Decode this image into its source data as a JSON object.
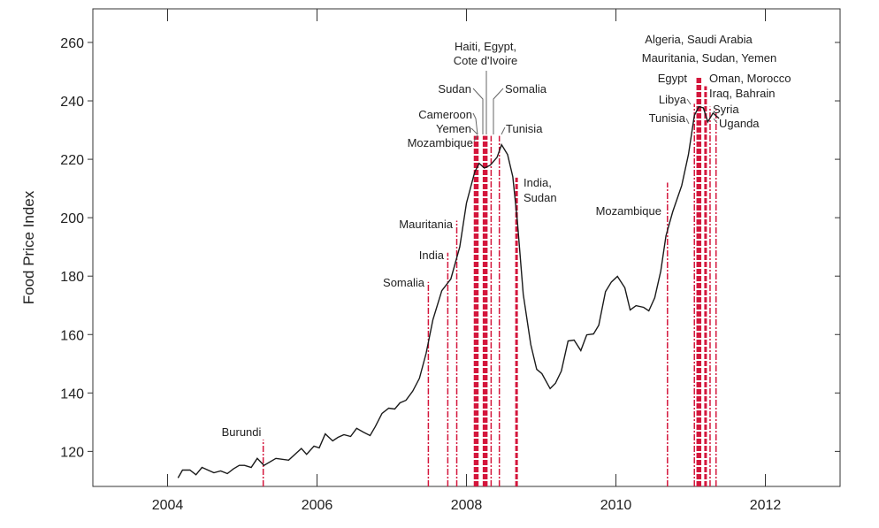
{
  "chart_data": {
    "type": "line",
    "title": "",
    "xlabel": "",
    "ylabel": "Food Price Index",
    "xlim": [
      2003,
      2013
    ],
    "ylim": [
      108,
      271.5
    ],
    "xticks": [
      2004,
      2006,
      2008,
      2010,
      2012
    ],
    "yticks": [
      120,
      140,
      160,
      180,
      200,
      220,
      240,
      260
    ],
    "grid": false,
    "colors": {
      "line": "#1a1a1a",
      "events": "#d4163c",
      "axis": "#333333"
    },
    "series": [
      {
        "x": [
          2004.14,
          2004.2,
          2004.3,
          2004.38,
          2004.46,
          2004.62,
          2004.71,
          2004.8,
          2004.88,
          2004.96,
          2005.03,
          2005.12,
          2005.2,
          2005.29,
          2005.45,
          2005.62,
          2005.79,
          2005.86,
          2005.96,
          2006.03,
          2006.11,
          2006.21,
          2006.28,
          2006.36,
          2006.45,
          2006.53,
          2006.62,
          2006.71,
          2006.78,
          2006.87,
          2006.96,
          2007.04,
          2007.11,
          2007.19,
          2007.28,
          2007.37,
          2007.46,
          2007.55,
          2007.67,
          2007.79,
          2007.91,
          2008.0,
          2008.11,
          2008.17,
          2008.24,
          2008.32,
          2008.41,
          2008.47,
          2008.55,
          2008.62,
          2008.68,
          2008.76,
          2008.86,
          2008.94,
          2009.01,
          2009.12,
          2009.19,
          2009.27,
          2009.36,
          2009.44,
          2009.53,
          2009.61,
          2009.7,
          2009.77,
          2009.86,
          2009.94,
          2010.02,
          2010.12,
          2010.19,
          2010.27,
          2010.37,
          2010.44,
          2010.52,
          2010.6,
          2010.67,
          2010.76,
          2010.88,
          2010.97,
          2011.05,
          2011.11,
          2011.17,
          2011.23,
          2011.3,
          2011.38
        ],
        "y": [
          110.9,
          113.6,
          113.6,
          112,
          114.5,
          112.7,
          113.3,
          112.4,
          114,
          115.2,
          115.2,
          114.5,
          117.6,
          115.2,
          117.6,
          117,
          121,
          119,
          121.8,
          121.2,
          126,
          123.6,
          124.8,
          125.7,
          125.1,
          127.9,
          126.6,
          125.4,
          128.5,
          133,
          134.8,
          134.5,
          136.6,
          137.5,
          140.6,
          145,
          153.6,
          165,
          175,
          179,
          190,
          205,
          215.6,
          218.6,
          217,
          218,
          220.7,
          225,
          221.6,
          214,
          199,
          173.8,
          156.6,
          148.1,
          146.6,
          141.5,
          143.3,
          147.5,
          157.8,
          158.1,
          154.5,
          159.9,
          160.2,
          163.2,
          174.7,
          178,
          179.9,
          176,
          168.4,
          169.9,
          169.3,
          168.1,
          172.6,
          181.7,
          193.8,
          202,
          211,
          221.6,
          235,
          238,
          237.6,
          232.8,
          235.8,
          234
        ]
      }
    ],
    "events": [
      {
        "date": 2005.28,
        "top": 124,
        "weight": 1
      },
      {
        "date": 2007.49,
        "top": 178,
        "weight": 1
      },
      {
        "date": 2007.75,
        "top": 188,
        "weight": 1
      },
      {
        "date": 2007.87,
        "top": 199,
        "weight": 1
      },
      {
        "date": 2008.13,
        "top": 228,
        "weight": 3
      },
      {
        "date": 2008.25,
        "top": 228,
        "weight": 3
      },
      {
        "date": 2008.33,
        "top": 228,
        "weight": 1
      },
      {
        "date": 2008.44,
        "top": 228,
        "weight": 1
      },
      {
        "date": 2008.67,
        "top": 213.7,
        "weight": 2
      },
      {
        "date": 2010.69,
        "top": 212,
        "weight": 1
      },
      {
        "date": 2011.05,
        "top": 239,
        "weight": 1
      },
      {
        "date": 2011.11,
        "top": 248,
        "weight": 3
      },
      {
        "date": 2011.2,
        "top": 245,
        "weight": 2
      },
      {
        "date": 2011.26,
        "top": 238,
        "weight": 1
      },
      {
        "date": 2011.34,
        "top": 237,
        "weight": 1
      }
    ],
    "annotations": {
      "burundi": "Burundi",
      "somalia_2007": "Somalia",
      "india_2007": "India",
      "mauritania_2007": "Mauritania",
      "haiti_line1": "Haiti, Egypt,",
      "haiti_line2": "Cote d'Ivoire",
      "sudan_2008": "Sudan",
      "somalia_2008": "Somalia",
      "cameroon": "Cameroon",
      "yemen_2008": "Yemen",
      "mozambique_2008": "Mozambique",
      "tunisia_2008": "Tunisia",
      "india_sudan_line1": "India,",
      "india_sudan_line2": "Sudan",
      "mozambique_2010": "Mozambique",
      "algeria_line": "Algeria, Saudi Arabia",
      "mauritania_line": "Mauritania, Sudan, Yemen",
      "egypt_2011": "Egypt",
      "oman_morocco": "Oman, Morocco",
      "libya": "Libya",
      "iraq_bahrain": "Iraq, Bahrain",
      "tunisia_2011": "Tunisia",
      "syria": "Syria",
      "uganda": "Uganda"
    }
  }
}
